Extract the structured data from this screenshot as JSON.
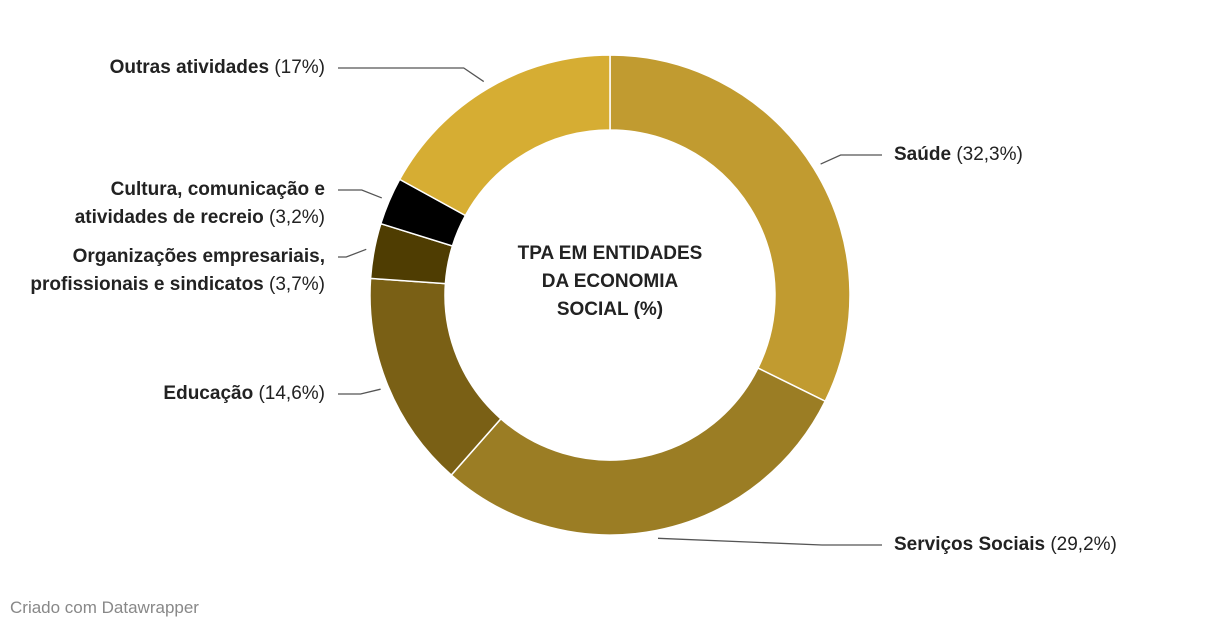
{
  "chart_data": {
    "type": "donut",
    "title": "TPA EM ENTIDADES DA ECONOMIA SOCIAL (%)",
    "categories": [
      "Saúde",
      "Serviços Sociais",
      "Educação",
      "Organizações empresariais, profissionais e sindicatos",
      "Cultura, comunicação e atividades de recreio",
      "Outras atividades"
    ],
    "values": [
      32.3,
      29.2,
      14.6,
      3.7,
      3.2,
      17
    ],
    "value_labels": [
      "(32,3%)",
      "(29,2%)",
      "(14,6%)",
      "(3,7%)",
      "(3,2%)",
      "(17%)"
    ],
    "colors": [
      "#c19b30",
      "#9b7d24",
      "#7a6015",
      "#4f3d02",
      "#000000",
      "#d6ad33"
    ],
    "source": "Criado com Datawrapper"
  }
}
